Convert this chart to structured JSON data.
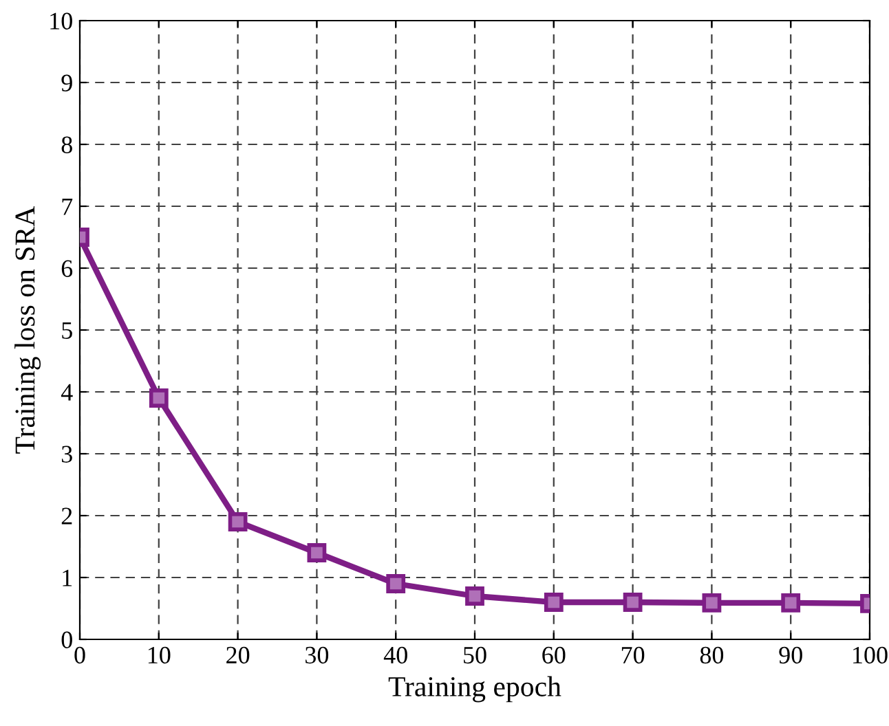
{
  "chart_data": {
    "type": "line",
    "xlabel": "Training epoch",
    "ylabel": "Training loss on SRA",
    "x": [
      0,
      10,
      20,
      30,
      40,
      50,
      60,
      70,
      80,
      90,
      100
    ],
    "series": [
      {
        "color": "#7e1e86",
        "values": [
          6.5,
          3.9,
          1.9,
          1.4,
          0.9,
          0.7,
          0.6,
          0.6,
          0.59,
          0.59,
          0.58
        ]
      }
    ],
    "xlim": [
      0,
      100
    ],
    "xticks": [
      0,
      10,
      20,
      30,
      40,
      50,
      60,
      70,
      80,
      90,
      100
    ],
    "ylim": [
      0,
      10
    ],
    "yticks": [
      0,
      1,
      2,
      3,
      4,
      5,
      6,
      7,
      8,
      9,
      10
    ],
    "grid": true,
    "marker": "square",
    "line_style": "solid",
    "legend": false
  }
}
